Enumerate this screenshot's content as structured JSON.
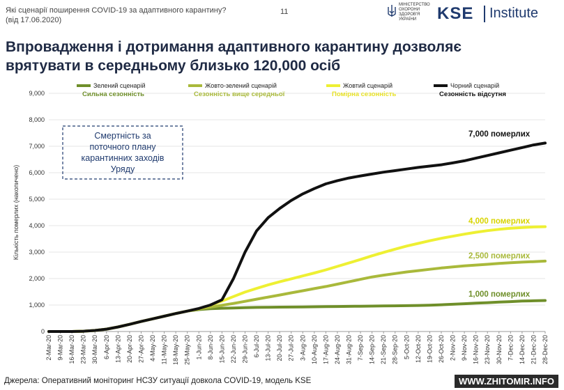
{
  "header": {
    "question_line1": "Які сценарії поширення COVID-19 за адаптивного карантину?",
    "question_line2": "(від 17.06.2020)",
    "page_number": "11",
    "ministry_lines": [
      "МІНІСТЕРСТВО",
      "ОХОРОНИ",
      "ЗДОРОВ'Я",
      "УКРАЇНИ"
    ],
    "logo_kse": "KSE",
    "logo_institute": "Institute"
  },
  "title_line1": "Впровадження і дотримання адаптивного карантину дозволяє",
  "title_line2": "врятувати в середньому близько 120,000 осіб",
  "footer": {
    "source": "Джерела: Оперативний моніторинг НСЗУ ситуації довкола COVID-19, модель KSE",
    "watermark": "WWW.ZHITOMIR.INFO"
  },
  "colors": {
    "green": "#6f8f2a",
    "yellow_green": "#a9b93b",
    "yellow": "#eef033",
    "black": "#111111",
    "title": "#1f2a44",
    "box": "#1f3a6e"
  },
  "chart_data": {
    "type": "line",
    "ylabel": "Кількість померлих (накопичено)",
    "ylim": [
      0,
      9000
    ],
    "yticks": [
      "0",
      "1,000",
      "2,000",
      "3,000",
      "4,000",
      "5,000",
      "6,000",
      "7,000",
      "8,000",
      "9,000"
    ],
    "yticks_values": [
      0,
      1000,
      2000,
      3000,
      4000,
      5000,
      6000,
      7000,
      8000,
      9000
    ],
    "categories": [
      "2-Mar-20",
      "9-Mar-20",
      "16-Mar-20",
      "23-Mar-20",
      "30-Mar-20",
      "6-Apr-20",
      "13-Apr-20",
      "20-Apr-20",
      "27-Apr-20",
      "4-May-20",
      "11-May-20",
      "18-May-20",
      "25-May-20",
      "1-Jun-20",
      "8-Jun-20",
      "15-Jun-20",
      "22-Jun-20",
      "29-Jun-20",
      "6-Jul-20",
      "13-Jul-20",
      "20-Jul-20",
      "27-Jul-20",
      "3-Aug-20",
      "10-Aug-20",
      "17-Aug-20",
      "24-Aug-20",
      "31-Aug-20",
      "7-Sep-20",
      "14-Sep-20",
      "21-Sep-20",
      "28-Sep-20",
      "5-Oct-20",
      "12-Oct-20",
      "19-Oct-20",
      "26-Oct-20",
      "2-Nov-20",
      "9-Nov-20",
      "16-Nov-20",
      "23-Nov-20",
      "30-Nov-20",
      "7-Dec-20",
      "14-Dec-20",
      "21-Dec-20",
      "28-Dec-20"
    ],
    "series": [
      {
        "name": "Зелений сценарій",
        "subtitle": "Сильна сезонність",
        "color": "#6f8f2a",
        "annotation": "1,000 померлих",
        "values": [
          0,
          0,
          0,
          10,
          40,
          90,
          170,
          270,
          380,
          480,
          580,
          680,
          770,
          830,
          860,
          880,
          890,
          900,
          910,
          915,
          920,
          925,
          930,
          935,
          940,
          945,
          950,
          955,
          960,
          965,
          970,
          975,
          985,
          995,
          1010,
          1030,
          1050,
          1070,
          1090,
          1110,
          1130,
          1150,
          1160,
          1170
        ]
      },
      {
        "name": "Жовто-зелений сценарій",
        "subtitle": "Сезонність вище середньої",
        "color": "#a9b93b",
        "annotation": "2,500 померлих",
        "values": [
          0,
          0,
          0,
          10,
          40,
          90,
          170,
          270,
          380,
          480,
          580,
          680,
          770,
          850,
          920,
          990,
          1060,
          1140,
          1220,
          1300,
          1380,
          1460,
          1540,
          1620,
          1700,
          1790,
          1880,
          1970,
          2060,
          2130,
          2190,
          2250,
          2300,
          2350,
          2400,
          2440,
          2480,
          2510,
          2540,
          2570,
          2600,
          2620,
          2640,
          2660
        ]
      },
      {
        "name": "Жовтий сценарій",
        "subtitle": "Помірна сезонність",
        "color": "#eef033",
        "annotation": "4,000 померлих",
        "values": [
          0,
          0,
          0,
          10,
          40,
          90,
          170,
          270,
          380,
          480,
          580,
          680,
          770,
          860,
          990,
          1150,
          1320,
          1490,
          1630,
          1760,
          1880,
          1990,
          2100,
          2210,
          2330,
          2460,
          2590,
          2720,
          2860,
          2990,
          3110,
          3230,
          3330,
          3430,
          3520,
          3600,
          3680,
          3750,
          3810,
          3860,
          3900,
          3930,
          3950,
          3960
        ]
      },
      {
        "name": "Чорний сценарій",
        "subtitle": "Сезонність відсутня",
        "color": "#111111",
        "annotation": "7,000 померлих",
        "values": [
          0,
          0,
          0,
          10,
          40,
          90,
          170,
          270,
          380,
          480,
          580,
          680,
          770,
          870,
          1000,
          1200,
          2000,
          3000,
          3800,
          4300,
          4650,
          4950,
          5200,
          5400,
          5580,
          5700,
          5800,
          5880,
          5950,
          6020,
          6080,
          6140,
          6200,
          6250,
          6300,
          6370,
          6450,
          6550,
          6650,
          6750,
          6850,
          6950,
          7050,
          7120
        ]
      }
    ],
    "grid": "horizontal",
    "legend_position": "top",
    "note_box": [
      "Смертність за",
      "поточного плану",
      "карантинних заходів",
      "Уряду"
    ]
  }
}
